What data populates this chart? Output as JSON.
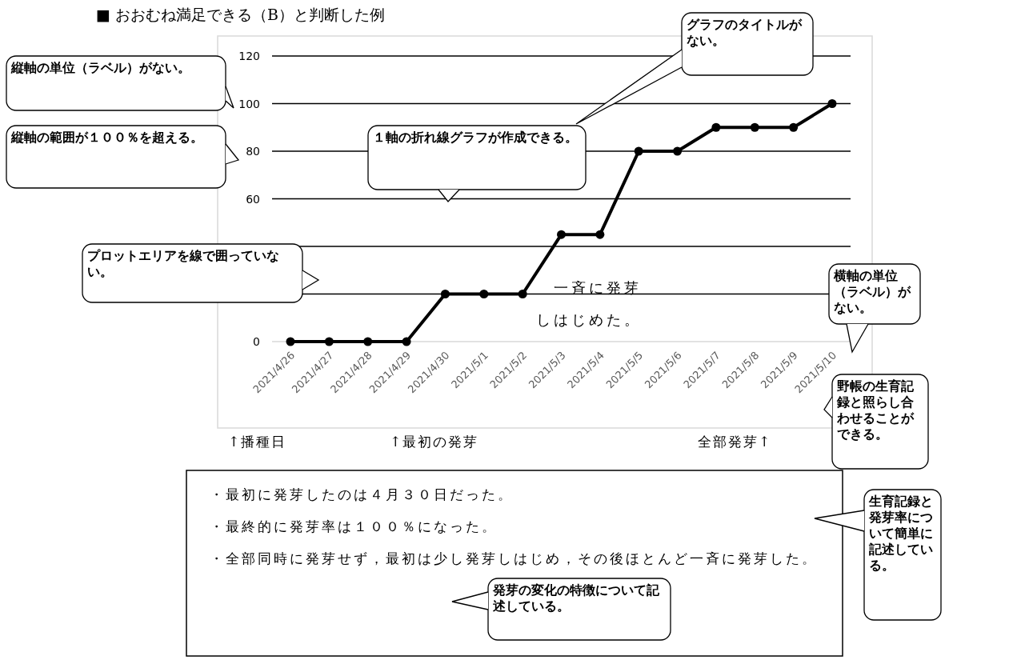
{
  "chart_data": {
    "type": "line",
    "title": "■ おおむね満足できる（B）と判断した例",
    "categories": [
      "2021/4/26",
      "2021/4/27",
      "2021/4/28",
      "2021/4/29",
      "2021/4/30",
      "2021/5/1",
      "2021/5/2",
      "2021/5/3",
      "2021/5/4",
      "2021/5/5",
      "2021/5/6",
      "2021/5/7",
      "2021/5/8",
      "2021/5/9",
      "2021/5/10"
    ],
    "values": [
      0,
      0,
      0,
      0,
      20,
      20,
      20,
      45,
      45,
      80,
      80,
      90,
      90,
      90,
      100
    ],
    "color": "#000000",
    "marker": "circle",
    "grid": "y",
    "ylim": [
      0,
      120
    ],
    "yticks": [
      0,
      {
        "value": 20,
        "label": null
      },
      {
        "value": 40,
        "label": null
      },
      60,
      80,
      100,
      120
    ],
    "annotations": [
      "グラフのタイトルがない。",
      "縦軸の単位（ラベル）がない。",
      "縦軸の範囲が１００％を超える。",
      "１軸の折れ線グラフが作成できる。",
      "プロットエリアを線で囲っていない。",
      "一斉に発芽しはじめた。",
      "横軸の単位（ラベル）がない。",
      "野帳の生育記録と照らし合わせることができる。",
      "↑播種日",
      "↑最初の発芽",
      "全部発芽↑",
      "・最初に発芽したのは４月３０日だった。",
      "・最終的に発芽率は１００％になった。",
      "・全部同時に発芽せず，最初は少し発芽しはじめ，その後ほとんど一斉に発芽した。",
      "生育記録と発芽率について簡単に記述している。",
      "発芽の変化の特徴について記述している。"
    ]
  }
}
